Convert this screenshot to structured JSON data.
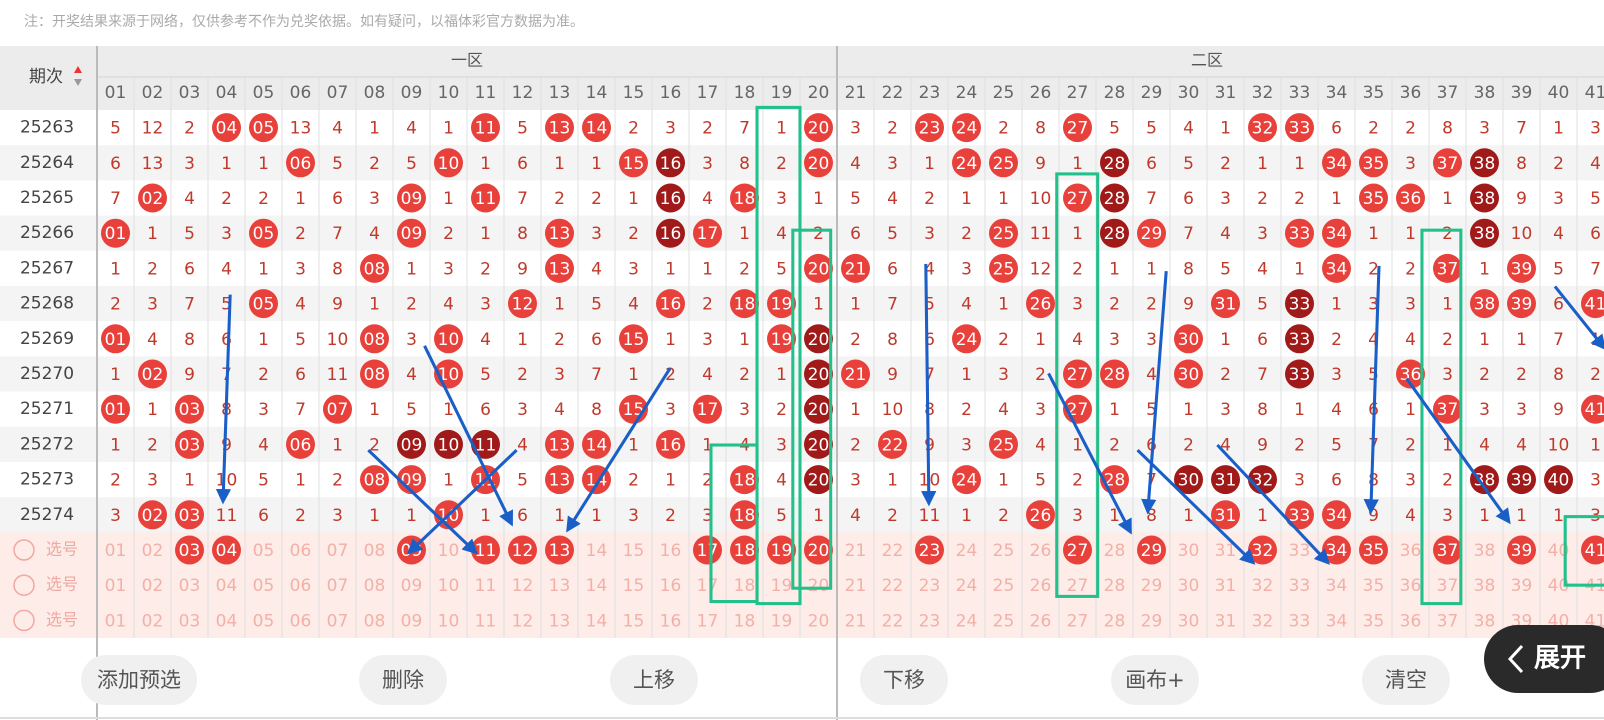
{
  "notice": "注：开奖结果来源于网络，仅供参考不作为兑奖依据。如有疑问，以福体彩官方数据为准。",
  "table": {
    "issue_header": "期次",
    "zones": [
      "一区",
      "二区"
    ],
    "columns": [
      "01",
      "02",
      "03",
      "04",
      "05",
      "06",
      "07",
      "08",
      "09",
      "10",
      "11",
      "12",
      "13",
      "14",
      "15",
      "16",
      "17",
      "18",
      "19",
      "20",
      "21",
      "22",
      "23",
      "24",
      "25",
      "26",
      "27",
      "28",
      "29",
      "30",
      "31",
      "32",
      "33",
      "34",
      "35",
      "36",
      "37",
      "38",
      "39",
      "40",
      "41"
    ],
    "rows": [
      {
        "issue": "25263",
        "cells": [
          "5",
          "12",
          "2",
          "04",
          "05",
          "13",
          "4",
          "1",
          "4",
          "1",
          "11",
          "5",
          "13",
          "14",
          "2",
          "3",
          "2",
          "7",
          "1",
          "20",
          "3",
          "2",
          "23",
          "24",
          "2",
          "8",
          "27",
          "5",
          "5",
          "4",
          "1",
          "32",
          "33",
          "6",
          "2",
          "2",
          "8",
          "3",
          "7",
          "1",
          "3"
        ],
        "dark": []
      },
      {
        "issue": "25264",
        "cells": [
          "6",
          "13",
          "3",
          "1",
          "1",
          "06",
          "5",
          "2",
          "5",
          "10",
          "1",
          "6",
          "1",
          "1",
          "15",
          "16",
          "3",
          "8",
          "2",
          "20",
          "4",
          "3",
          "1",
          "24",
          "25",
          "9",
          "1",
          "28",
          "6",
          "5",
          "2",
          "1",
          "1",
          "34",
          "35",
          "3",
          "37",
          "38",
          "8",
          "2",
          "4"
        ],
        "dark": [
          "16",
          "28",
          "38"
        ]
      },
      {
        "issue": "25265",
        "cells": [
          "7",
          "02",
          "4",
          "2",
          "2",
          "1",
          "6",
          "3",
          "09",
          "1",
          "11",
          "7",
          "2",
          "2",
          "1",
          "16",
          "4",
          "18",
          "3",
          "1",
          "5",
          "4",
          "2",
          "1",
          "1",
          "10",
          "27",
          "28",
          "7",
          "6",
          "3",
          "2",
          "2",
          "1",
          "35",
          "36",
          "1",
          "38",
          "9",
          "3",
          "5"
        ],
        "dark": [
          "16",
          "28",
          "38"
        ]
      },
      {
        "issue": "25266",
        "cells": [
          "01",
          "1",
          "5",
          "3",
          "05",
          "2",
          "7",
          "4",
          "09",
          "2",
          "1",
          "8",
          "13",
          "3",
          "2",
          "16",
          "17",
          "1",
          "4",
          "2",
          "6",
          "5",
          "3",
          "2",
          "25",
          "11",
          "1",
          "28",
          "29",
          "7",
          "4",
          "3",
          "33",
          "34",
          "1",
          "1",
          "2",
          "38",
          "10",
          "4",
          "6"
        ],
        "dark": [
          "16",
          "28",
          "38"
        ]
      },
      {
        "issue": "25267",
        "cells": [
          "1",
          "2",
          "6",
          "4",
          "1",
          "3",
          "8",
          "08",
          "1",
          "3",
          "2",
          "9",
          "13",
          "4",
          "3",
          "1",
          "1",
          "2",
          "5",
          "20",
          "21",
          "6",
          "4",
          "3",
          "25",
          "12",
          "2",
          "1",
          "1",
          "8",
          "5",
          "4",
          "1",
          "34",
          "2",
          "2",
          "37",
          "1",
          "39",
          "5",
          "7"
        ],
        "dark": []
      },
      {
        "issue": "25268",
        "cells": [
          "2",
          "3",
          "7",
          "5",
          "05",
          "4",
          "9",
          "1",
          "2",
          "4",
          "3",
          "12",
          "1",
          "5",
          "4",
          "16",
          "2",
          "18",
          "19",
          "1",
          "1",
          "7",
          "5",
          "4",
          "1",
          "26",
          "3",
          "2",
          "2",
          "9",
          "31",
          "5",
          "33",
          "1",
          "3",
          "3",
          "1",
          "38",
          "39",
          "6",
          "41"
        ],
        "dark": [
          "33"
        ]
      },
      {
        "issue": "25269",
        "cells": [
          "01",
          "4",
          "8",
          "6",
          "1",
          "5",
          "10",
          "08",
          "3",
          "10",
          "4",
          "1",
          "2",
          "6",
          "15",
          "1",
          "3",
          "1",
          "19",
          "20",
          "2",
          "8",
          "6",
          "24",
          "2",
          "1",
          "4",
          "3",
          "3",
          "30",
          "1",
          "6",
          "33",
          "2",
          "4",
          "4",
          "2",
          "1",
          "1",
          "7",
          "1"
        ],
        "dark": [
          "20",
          "33"
        ]
      },
      {
        "issue": "25270",
        "cells": [
          "1",
          "02",
          "9",
          "7",
          "2",
          "6",
          "11",
          "08",
          "4",
          "10",
          "5",
          "2",
          "3",
          "7",
          "1",
          "2",
          "4",
          "2",
          "1",
          "20",
          "21",
          "9",
          "7",
          "1",
          "3",
          "2",
          "27",
          "28",
          "4",
          "30",
          "2",
          "7",
          "33",
          "3",
          "5",
          "36",
          "3",
          "2",
          "2",
          "8",
          "2"
        ],
        "dark": [
          "20",
          "33"
        ]
      },
      {
        "issue": "25271",
        "cells": [
          "01",
          "1",
          "03",
          "8",
          "3",
          "7",
          "07",
          "1",
          "5",
          "1",
          "6",
          "3",
          "4",
          "8",
          "15",
          "3",
          "17",
          "3",
          "2",
          "20",
          "1",
          "10",
          "8",
          "2",
          "4",
          "3",
          "27",
          "1",
          "5",
          "1",
          "3",
          "8",
          "1",
          "4",
          "6",
          "1",
          "37",
          "3",
          "3",
          "9",
          "41"
        ],
        "dark": [
          "20"
        ]
      },
      {
        "issue": "25272",
        "cells": [
          "1",
          "2",
          "03",
          "9",
          "4",
          "06",
          "1",
          "2",
          "09",
          "10",
          "11",
          "4",
          "13",
          "14",
          "1",
          "16",
          "1",
          "4",
          "3",
          "20",
          "2",
          "22",
          "9",
          "3",
          "25",
          "4",
          "1",
          "2",
          "6",
          "2",
          "4",
          "9",
          "2",
          "5",
          "7",
          "2",
          "1",
          "4",
          "4",
          "10",
          "1"
        ],
        "dark": [
          "09",
          "10",
          "11",
          "20"
        ]
      },
      {
        "issue": "25273",
        "cells": [
          "2",
          "3",
          "1",
          "10",
          "5",
          "1",
          "2",
          "08",
          "09",
          "1",
          "11",
          "5",
          "13",
          "14",
          "2",
          "1",
          "2",
          "18",
          "4",
          "20",
          "3",
          "1",
          "10",
          "24",
          "1",
          "5",
          "2",
          "28",
          "7",
          "30",
          "31",
          "32",
          "3",
          "6",
          "8",
          "3",
          "2",
          "38",
          "39",
          "40",
          "3"
        ],
        "dark": [
          "20",
          "30",
          "31",
          "32",
          "38",
          "39",
          "40"
        ]
      },
      {
        "issue": "25274",
        "cells": [
          "3",
          "02",
          "03",
          "11",
          "6",
          "2",
          "3",
          "1",
          "1",
          "10",
          "1",
          "6",
          "1",
          "1",
          "3",
          "2",
          "3",
          "18",
          "5",
          "1",
          "4",
          "2",
          "11",
          "1",
          "2",
          "26",
          "3",
          "1",
          "8",
          "1",
          "31",
          "1",
          "33",
          "34",
          "9",
          "4",
          "3",
          "1",
          "1",
          "1",
          "3"
        ],
        "dark": []
      }
    ],
    "pick_rows": [
      {
        "label": "选号",
        "selected": [
          "03",
          "04",
          "09",
          "11",
          "12",
          "13",
          "17",
          "18",
          "19",
          "20",
          "23",
          "27",
          "29",
          "32",
          "34",
          "35",
          "37",
          "39",
          "41"
        ]
      },
      {
        "label": "选号",
        "selected": []
      },
      {
        "label": "选号",
        "selected": []
      }
    ]
  },
  "buttons": [
    "添加预选",
    "删除",
    "上移",
    "下移",
    "画布+",
    "清空"
  ],
  "expand_button": "展开"
}
